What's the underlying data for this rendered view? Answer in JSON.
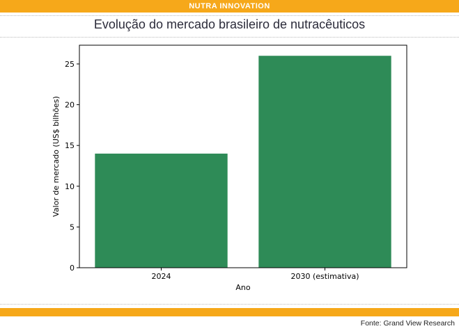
{
  "header": {
    "banner": "NUTRA INNOVATION",
    "title": "Evolução do mercado brasileiro de nutracêuticos"
  },
  "footer": {
    "source": "Fonte: Grand View Research"
  },
  "colors": {
    "accent": "#f6a81a",
    "bar": "#2e8b57"
  },
  "chart_data": {
    "type": "bar",
    "categories": [
      "2024",
      "2030 (estimativa)"
    ],
    "values": [
      14,
      26
    ],
    "title": "",
    "xlabel": "Ano",
    "ylabel": "Valor de mercado (US$ bilhões)",
    "ylim": [
      0,
      27.3
    ],
    "yticks": [
      0,
      5,
      10,
      15,
      20,
      25
    ],
    "grid": false
  }
}
